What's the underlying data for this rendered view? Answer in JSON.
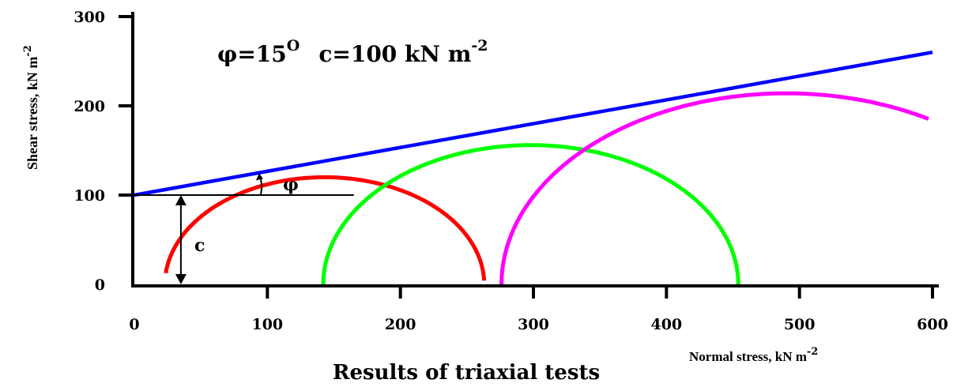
{
  "chart_data": {
    "type": "line",
    "title": "Results of triaxial tests",
    "xlabel": "Normal stress, kN m",
    "xlabel_exp": "-2",
    "ylabel": "Shear stress, kN m",
    "ylabel_exp": "-2",
    "xlim": [
      0,
      600
    ],
    "ylim": [
      0,
      300
    ],
    "xticks": [
      "0",
      "100",
      "200",
      "300",
      "400",
      "500",
      "600"
    ],
    "yticks": [
      "0",
      "100",
      "200",
      "300"
    ],
    "params_text": {
      "phi": "φ=15",
      "phi_sup": "O",
      "c": "c=100 kN m",
      "c_sup": "-2"
    },
    "annotations": {
      "phi_label": "φ",
      "c_label": "c"
    },
    "failure_envelope": {
      "color": "#0000ff",
      "x": [
        0,
        600
      ],
      "y": [
        100,
        260
      ]
    },
    "reference_line": {
      "color": "#000000",
      "y": 100,
      "x_end": 165
    },
    "c_arrow_x": 35,
    "phi_arc_x": 95,
    "mohr_circles": [
      {
        "color": "#ff0000",
        "center": 143,
        "radius": 120,
        "start_deg": 174,
        "end_deg": 2
      },
      {
        "color": "#00ff00",
        "center": 298,
        "radius": 156,
        "start_deg": 180,
        "end_deg": 0
      },
      {
        "color": "#ff00ff",
        "center": 490,
        "radius": 214,
        "start_deg": 180,
        "end_deg": 60
      }
    ]
  }
}
